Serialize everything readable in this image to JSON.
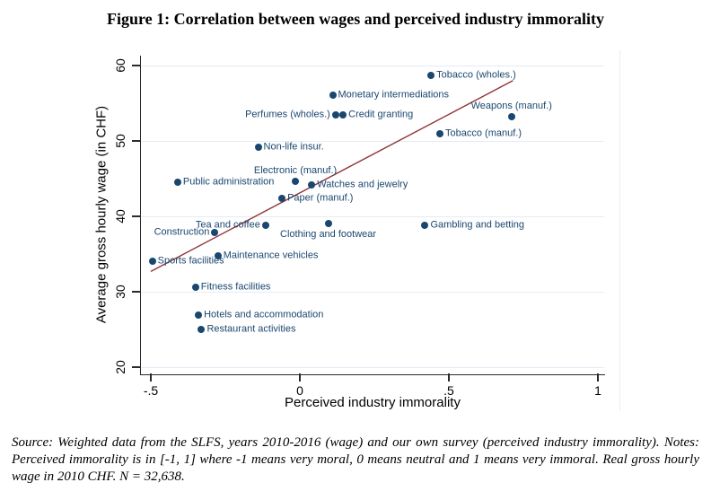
{
  "figure": {
    "title": "Figure 1: Correlation between wages and perceived industry immorality"
  },
  "chart_data": {
    "type": "scatter",
    "title": "Figure 1: Correlation between wages and perceived industry immorality",
    "xlabel": "Perceived industry immorality",
    "ylabel": "Average gross hourly wage (in CHF)",
    "xlim": [
      -0.53,
      1.02
    ],
    "ylim": [
      19,
      61.3
    ],
    "grid": "horizontal",
    "legend": "none",
    "xticks": {
      "values": [
        -0.5,
        0,
        0.5,
        1
      ],
      "labels": [
        "-.5",
        "0",
        ".5",
        "1"
      ]
    },
    "yticks": {
      "values": [
        20,
        30,
        40,
        50,
        60
      ],
      "labels": [
        "20",
        "30",
        "40",
        "50",
        "60"
      ]
    },
    "colors": {
      "point": "#1a476f",
      "label": "#1a476f",
      "fit_line": "#90353b",
      "gridline": "#e4ecf4",
      "axis": "#2b2b2b"
    },
    "points": [
      {
        "name": "Tobacco (wholes.)",
        "x": 0.44,
        "y": 58.7,
        "label_pos": "right"
      },
      {
        "name": "Monetary intermediations",
        "x": 0.11,
        "y": 56.1,
        "label_pos": "right"
      },
      {
        "name": "Perfumes (wholes.)",
        "x": 0.12,
        "y": 53.5,
        "label_pos": "left"
      },
      {
        "name": "Credit granting",
        "x": 0.145,
        "y": 53.5,
        "label_pos": "right"
      },
      {
        "name": "Weapons (manuf.)",
        "x": 0.71,
        "y": 53.2,
        "label_pos": "above"
      },
      {
        "name": "Tobacco (manuf.)",
        "x": 0.47,
        "y": 51.0,
        "label_pos": "right"
      },
      {
        "name": "Non-life insur.",
        "x": -0.14,
        "y": 49.2,
        "label_pos": "right"
      },
      {
        "name": "Electronic (manuf.)",
        "x": -0.015,
        "y": 44.7,
        "label_pos": "above"
      },
      {
        "name": "Public administration",
        "x": -0.41,
        "y": 44.5,
        "label_pos": "right"
      },
      {
        "name": "Watches and jewelry",
        "x": 0.04,
        "y": 44.2,
        "label_pos": "right"
      },
      {
        "name": "Paper (manuf.)",
        "x": -0.06,
        "y": 42.4,
        "label_pos": "right"
      },
      {
        "name": "Tea and coffee",
        "x": -0.115,
        "y": 38.8,
        "label_pos": "left"
      },
      {
        "name": "Clothing and footwear",
        "x": 0.095,
        "y": 39.0,
        "label_pos": "below"
      },
      {
        "name": "Gambling and betting",
        "x": 0.42,
        "y": 38.8,
        "label_pos": "right"
      },
      {
        "name": "Construction",
        "x": -0.285,
        "y": 37.9,
        "label_pos": "left"
      },
      {
        "name": "Maintenance vehicles",
        "x": -0.275,
        "y": 34.8,
        "label_pos": "right"
      },
      {
        "name": "Sports facilities",
        "x": -0.495,
        "y": 34.0,
        "label_pos": "right"
      },
      {
        "name": "Fitness facilities",
        "x": -0.35,
        "y": 30.6,
        "label_pos": "right"
      },
      {
        "name": "Hotels and accommodation",
        "x": -0.34,
        "y": 26.9,
        "label_pos": "right"
      },
      {
        "name": "Restaurant activities",
        "x": -0.33,
        "y": 25.0,
        "label_pos": "right"
      }
    ],
    "fit_line": {
      "x1": -0.5,
      "y1": 32.7,
      "x2": 0.715,
      "y2": 58.0
    }
  },
  "source_note": {
    "text": "Source: Weighted data from the SLFS, years 2010-2016 (wage) and our own survey (perceived industry immorality). Notes: Perceived immorality is in [-1, 1] where -1 means very moral, 0 means neutral and 1 means very immoral. Real gross hourly wage in 2010 CHF. N = 32,638."
  }
}
